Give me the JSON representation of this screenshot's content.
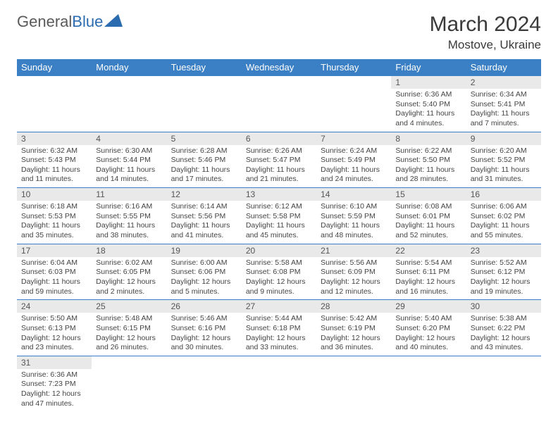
{
  "logo": {
    "text1": "General",
    "text2": "Blue"
  },
  "title": "March 2024",
  "location": "Mostove, Ukraine",
  "colors": {
    "header_bg": "#3b7fc4",
    "header_text": "#ffffff",
    "daynum_bg": "#e9e9e9",
    "border": "#3b7fc4",
    "logo_gray": "#5a5a5a",
    "logo_blue": "#2b6cb0"
  },
  "day_headers": [
    "Sunday",
    "Monday",
    "Tuesday",
    "Wednesday",
    "Thursday",
    "Friday",
    "Saturday"
  ],
  "weeks": [
    [
      {
        "empty": true
      },
      {
        "empty": true
      },
      {
        "empty": true
      },
      {
        "empty": true
      },
      {
        "empty": true
      },
      {
        "n": "1",
        "sr": "Sunrise: 6:36 AM",
        "ss": "Sunset: 5:40 PM",
        "d1": "Daylight: 11 hours",
        "d2": "and 4 minutes."
      },
      {
        "n": "2",
        "sr": "Sunrise: 6:34 AM",
        "ss": "Sunset: 5:41 PM",
        "d1": "Daylight: 11 hours",
        "d2": "and 7 minutes."
      }
    ],
    [
      {
        "n": "3",
        "sr": "Sunrise: 6:32 AM",
        "ss": "Sunset: 5:43 PM",
        "d1": "Daylight: 11 hours",
        "d2": "and 11 minutes."
      },
      {
        "n": "4",
        "sr": "Sunrise: 6:30 AM",
        "ss": "Sunset: 5:44 PM",
        "d1": "Daylight: 11 hours",
        "d2": "and 14 minutes."
      },
      {
        "n": "5",
        "sr": "Sunrise: 6:28 AM",
        "ss": "Sunset: 5:46 PM",
        "d1": "Daylight: 11 hours",
        "d2": "and 17 minutes."
      },
      {
        "n": "6",
        "sr": "Sunrise: 6:26 AM",
        "ss": "Sunset: 5:47 PM",
        "d1": "Daylight: 11 hours",
        "d2": "and 21 minutes."
      },
      {
        "n": "7",
        "sr": "Sunrise: 6:24 AM",
        "ss": "Sunset: 5:49 PM",
        "d1": "Daylight: 11 hours",
        "d2": "and 24 minutes."
      },
      {
        "n": "8",
        "sr": "Sunrise: 6:22 AM",
        "ss": "Sunset: 5:50 PM",
        "d1": "Daylight: 11 hours",
        "d2": "and 28 minutes."
      },
      {
        "n": "9",
        "sr": "Sunrise: 6:20 AM",
        "ss": "Sunset: 5:52 PM",
        "d1": "Daylight: 11 hours",
        "d2": "and 31 minutes."
      }
    ],
    [
      {
        "n": "10",
        "sr": "Sunrise: 6:18 AM",
        "ss": "Sunset: 5:53 PM",
        "d1": "Daylight: 11 hours",
        "d2": "and 35 minutes."
      },
      {
        "n": "11",
        "sr": "Sunrise: 6:16 AM",
        "ss": "Sunset: 5:55 PM",
        "d1": "Daylight: 11 hours",
        "d2": "and 38 minutes."
      },
      {
        "n": "12",
        "sr": "Sunrise: 6:14 AM",
        "ss": "Sunset: 5:56 PM",
        "d1": "Daylight: 11 hours",
        "d2": "and 41 minutes."
      },
      {
        "n": "13",
        "sr": "Sunrise: 6:12 AM",
        "ss": "Sunset: 5:58 PM",
        "d1": "Daylight: 11 hours",
        "d2": "and 45 minutes."
      },
      {
        "n": "14",
        "sr": "Sunrise: 6:10 AM",
        "ss": "Sunset: 5:59 PM",
        "d1": "Daylight: 11 hours",
        "d2": "and 48 minutes."
      },
      {
        "n": "15",
        "sr": "Sunrise: 6:08 AM",
        "ss": "Sunset: 6:01 PM",
        "d1": "Daylight: 11 hours",
        "d2": "and 52 minutes."
      },
      {
        "n": "16",
        "sr": "Sunrise: 6:06 AM",
        "ss": "Sunset: 6:02 PM",
        "d1": "Daylight: 11 hours",
        "d2": "and 55 minutes."
      }
    ],
    [
      {
        "n": "17",
        "sr": "Sunrise: 6:04 AM",
        "ss": "Sunset: 6:03 PM",
        "d1": "Daylight: 11 hours",
        "d2": "and 59 minutes."
      },
      {
        "n": "18",
        "sr": "Sunrise: 6:02 AM",
        "ss": "Sunset: 6:05 PM",
        "d1": "Daylight: 12 hours",
        "d2": "and 2 minutes."
      },
      {
        "n": "19",
        "sr": "Sunrise: 6:00 AM",
        "ss": "Sunset: 6:06 PM",
        "d1": "Daylight: 12 hours",
        "d2": "and 5 minutes."
      },
      {
        "n": "20",
        "sr": "Sunrise: 5:58 AM",
        "ss": "Sunset: 6:08 PM",
        "d1": "Daylight: 12 hours",
        "d2": "and 9 minutes."
      },
      {
        "n": "21",
        "sr": "Sunrise: 5:56 AM",
        "ss": "Sunset: 6:09 PM",
        "d1": "Daylight: 12 hours",
        "d2": "and 12 minutes."
      },
      {
        "n": "22",
        "sr": "Sunrise: 5:54 AM",
        "ss": "Sunset: 6:11 PM",
        "d1": "Daylight: 12 hours",
        "d2": "and 16 minutes."
      },
      {
        "n": "23",
        "sr": "Sunrise: 5:52 AM",
        "ss": "Sunset: 6:12 PM",
        "d1": "Daylight: 12 hours",
        "d2": "and 19 minutes."
      }
    ],
    [
      {
        "n": "24",
        "sr": "Sunrise: 5:50 AM",
        "ss": "Sunset: 6:13 PM",
        "d1": "Daylight: 12 hours",
        "d2": "and 23 minutes."
      },
      {
        "n": "25",
        "sr": "Sunrise: 5:48 AM",
        "ss": "Sunset: 6:15 PM",
        "d1": "Daylight: 12 hours",
        "d2": "and 26 minutes."
      },
      {
        "n": "26",
        "sr": "Sunrise: 5:46 AM",
        "ss": "Sunset: 6:16 PM",
        "d1": "Daylight: 12 hours",
        "d2": "and 30 minutes."
      },
      {
        "n": "27",
        "sr": "Sunrise: 5:44 AM",
        "ss": "Sunset: 6:18 PM",
        "d1": "Daylight: 12 hours",
        "d2": "and 33 minutes."
      },
      {
        "n": "28",
        "sr": "Sunrise: 5:42 AM",
        "ss": "Sunset: 6:19 PM",
        "d1": "Daylight: 12 hours",
        "d2": "and 36 minutes."
      },
      {
        "n": "29",
        "sr": "Sunrise: 5:40 AM",
        "ss": "Sunset: 6:20 PM",
        "d1": "Daylight: 12 hours",
        "d2": "and 40 minutes."
      },
      {
        "n": "30",
        "sr": "Sunrise: 5:38 AM",
        "ss": "Sunset: 6:22 PM",
        "d1": "Daylight: 12 hours",
        "d2": "and 43 minutes."
      }
    ],
    [
      {
        "n": "31",
        "sr": "Sunrise: 6:36 AM",
        "ss": "Sunset: 7:23 PM",
        "d1": "Daylight: 12 hours",
        "d2": "and 47 minutes."
      },
      {
        "empty": true
      },
      {
        "empty": true
      },
      {
        "empty": true
      },
      {
        "empty": true
      },
      {
        "empty": true
      },
      {
        "empty": true
      }
    ]
  ]
}
